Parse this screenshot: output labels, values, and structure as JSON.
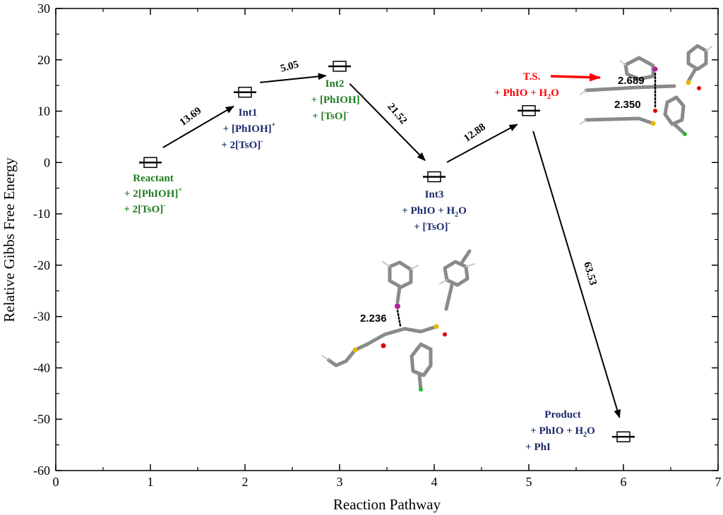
{
  "chart_data": {
    "type": "scatter",
    "title": "",
    "xlabel": "Reaction Pathway",
    "ylabel": "Relative Gibbs Free Energy",
    "xlim": [
      0,
      7
    ],
    "ylim": [
      -60,
      30
    ],
    "x_ticks": [
      "0",
      "1",
      "2",
      "3",
      "4",
      "5",
      "6",
      "7"
    ],
    "y_ticks": [
      "30",
      "20",
      "10",
      "0",
      "-10",
      "-20",
      "-30",
      "-40",
      "-50",
      "-60"
    ],
    "points": [
      {
        "x": 1,
        "y": 0
      },
      {
        "x": 2,
        "y": 13.69
      },
      {
        "x": 3,
        "y": 18.74
      },
      {
        "x": 4,
        "y": -2.78
      },
      {
        "x": 5,
        "y": 10.1
      },
      {
        "x": 6,
        "y": -53.43
      }
    ],
    "transitions": [
      {
        "from": 1,
        "to": 2,
        "label": "13.69"
      },
      {
        "from": 2,
        "to": 3,
        "label": "5.05"
      },
      {
        "from": 3,
        "to": 4,
        "label": "21.52"
      },
      {
        "from": 4,
        "to": 5,
        "label": "12.88"
      },
      {
        "from": 5,
        "to": 6,
        "label": "63.53"
      }
    ],
    "colors": {
      "green": "#1f7a1f",
      "navy": "#1b2a6b",
      "red": "#ff0000",
      "black": "#000000"
    }
  },
  "annotations": {
    "reactant": {
      "name": "Reactant",
      "line2a": "+ 2[PhIOH]",
      "line2sup": "+",
      "line3a": "+ 2[TsO]",
      "line3sup": "-"
    },
    "int1": {
      "name": "Int1",
      "line2a": "+ [PhIOH]",
      "line2sup": "+",
      "line3a": "+ 2[TsO]",
      "line3sup": "-"
    },
    "int2": {
      "name": "Int2",
      "line2a": "+ [PhIOH]",
      "line2sup": "+",
      "line3a": "+ [TsO]",
      "line3sup": "-"
    },
    "int3": {
      "name": "Int3",
      "line2a": "+ PhIO + H",
      "line2sub": "2",
      "line2b": "O",
      "line3a": "+ [TsO]",
      "line3sup": "-"
    },
    "ts": {
      "name": "T.S.",
      "line2a": "+ PhIO + H",
      "line2sub": "2",
      "line2b": "O"
    },
    "product": {
      "name": "Product",
      "line2a": "+ PhIO + H",
      "line2sub": "2",
      "line2b": "O",
      "line3a": "+ PhI"
    }
  },
  "distances": {
    "int3_bond": "2.236",
    "ts_bond1": "2.689",
    "ts_bond2": "2.350"
  }
}
